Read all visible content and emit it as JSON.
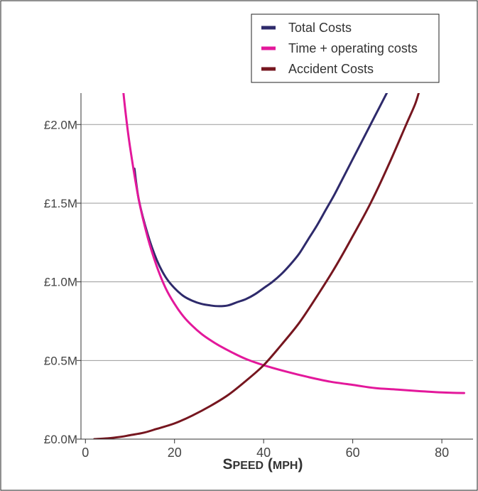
{
  "chart_data": {
    "type": "line",
    "xlabel_cap1": "S",
    "xlabel_small1": "PEED",
    "xlabel_open": " (",
    "xlabel_small2": "MPH",
    "xlabel_close": ")",
    "xlim": [
      -1,
      87
    ],
    "ylim": [
      0,
      2.2
    ],
    "x_ticks": [
      {
        "value": 0,
        "label": "0"
      },
      {
        "value": 20,
        "label": "20"
      },
      {
        "value": 40,
        "label": "40"
      },
      {
        "value": 60,
        "label": "60"
      },
      {
        "value": 80,
        "label": "80"
      }
    ],
    "y_ticks": [
      {
        "value": 0,
        "label": "£0.0M"
      },
      {
        "value": 0.5,
        "label": "£0.5M"
      },
      {
        "value": 1.0,
        "label": "£1.0M"
      },
      {
        "value": 1.5,
        "label": "£1.5M"
      },
      {
        "value": 2.0,
        "label": "£2.0M"
      }
    ],
    "grid": "horizontal",
    "legend_position": "top-right",
    "series": [
      {
        "name": "Total Costs",
        "color": "#2e2a6b",
        "points": [
          [
            11,
            1.72
          ],
          [
            12,
            1.52
          ],
          [
            14,
            1.3
          ],
          [
            16,
            1.14
          ],
          [
            18,
            1.03
          ],
          [
            20,
            0.96
          ],
          [
            22,
            0.91
          ],
          [
            24,
            0.88
          ],
          [
            26,
            0.86
          ],
          [
            28,
            0.85
          ],
          [
            30,
            0.845
          ],
          [
            32,
            0.85
          ],
          [
            34,
            0.87
          ],
          [
            36,
            0.89
          ],
          [
            38,
            0.92
          ],
          [
            40,
            0.96
          ],
          [
            42,
            1.0
          ],
          [
            44,
            1.05
          ],
          [
            46,
            1.11
          ],
          [
            48,
            1.18
          ],
          [
            50,
            1.27
          ],
          [
            52,
            1.36
          ],
          [
            54,
            1.46
          ],
          [
            56,
            1.56
          ],
          [
            58,
            1.67
          ],
          [
            60,
            1.78
          ],
          [
            62,
            1.89
          ],
          [
            64,
            2.0
          ],
          [
            66,
            2.11
          ],
          [
            68,
            2.22
          ]
        ]
      },
      {
        "name": "Time + operating costs",
        "color": "#e3189b",
        "points": [
          [
            8,
            2.35
          ],
          [
            9,
            2.08
          ],
          [
            10,
            1.86
          ],
          [
            12,
            1.52
          ],
          [
            14,
            1.28
          ],
          [
            16,
            1.1
          ],
          [
            18,
            0.96
          ],
          [
            20,
            0.86
          ],
          [
            22,
            0.78
          ],
          [
            24,
            0.72
          ],
          [
            26,
            0.67
          ],
          [
            28,
            0.63
          ],
          [
            30,
            0.595
          ],
          [
            33,
            0.55
          ],
          [
            36,
            0.51
          ],
          [
            40,
            0.47
          ],
          [
            45,
            0.43
          ],
          [
            50,
            0.395
          ],
          [
            55,
            0.365
          ],
          [
            60,
            0.345
          ],
          [
            65,
            0.325
          ],
          [
            70,
            0.315
          ],
          [
            75,
            0.305
          ],
          [
            80,
            0.297
          ],
          [
            85,
            0.293
          ]
        ]
      },
      {
        "name": "Accident Costs",
        "color": "#76161f",
        "points": [
          [
            2,
            0.0
          ],
          [
            5,
            0.005
          ],
          [
            8,
            0.015
          ],
          [
            10,
            0.025
          ],
          [
            13,
            0.04
          ],
          [
            16,
            0.065
          ],
          [
            20,
            0.1
          ],
          [
            24,
            0.15
          ],
          [
            28,
            0.21
          ],
          [
            32,
            0.28
          ],
          [
            36,
            0.37
          ],
          [
            40,
            0.47
          ],
          [
            44,
            0.6
          ],
          [
            48,
            0.74
          ],
          [
            52,
            0.91
          ],
          [
            56,
            1.09
          ],
          [
            60,
            1.29
          ],
          [
            64,
            1.5
          ],
          [
            68,
            1.74
          ],
          [
            72,
            2.0
          ],
          [
            74,
            2.13
          ],
          [
            75,
            2.22
          ]
        ]
      }
    ]
  }
}
